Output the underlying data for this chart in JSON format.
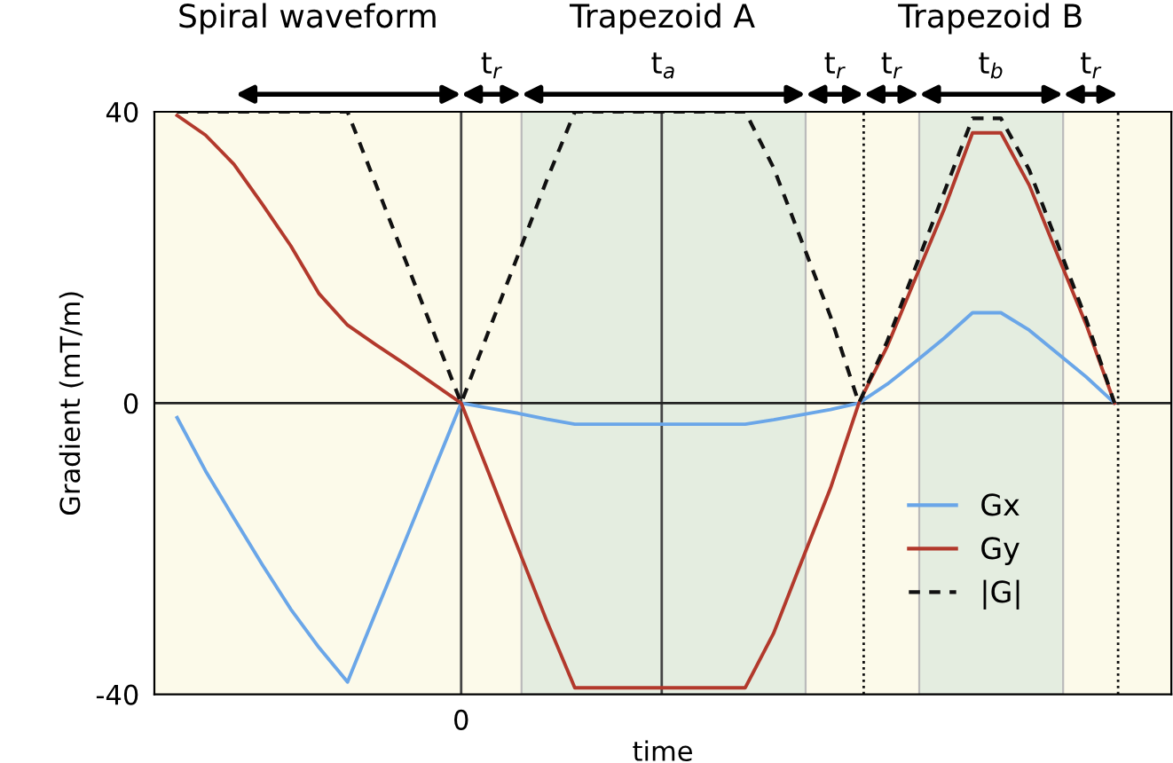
{
  "chart_data": {
    "type": "line",
    "xlabel": "time",
    "ylabel": "Gradient (mT/m)",
    "categories": [
      null,
      null,
      null,
      null,
      null,
      null,
      null,
      null,
      null,
      null,
      "0",
      null,
      null,
      null,
      null,
      null,
      null,
      null,
      null,
      null,
      null,
      null,
      null,
      null,
      null,
      null,
      null,
      null,
      null,
      null,
      null,
      null,
      null,
      null,
      null,
      null
    ],
    "ylim": [
      -40,
      40
    ],
    "yticks": [
      -40,
      0,
      40
    ],
    "grid": false,
    "legend": "lower right",
    "series": [
      {
        "name": "Gx",
        "color": "#6aa6e8",
        "line_style": "solid",
        "values": [
          -2.0,
          -9.3,
          -15.8,
          -22.2,
          -28.3,
          -33.6,
          -38.3,
          -28.7,
          -19.2,
          -9.6,
          0,
          -0.7,
          -1.4,
          -2.2,
          -2.9,
          -2.9,
          -2.9,
          -2.9,
          -2.9,
          -2.9,
          -2.9,
          -2.3,
          -1.6,
          -0.9,
          0,
          2.6,
          5.7,
          8.9,
          12.4,
          12.4,
          10.0,
          6.8,
          3.6,
          0,
          null,
          null
        ]
      },
      {
        "name": "Gy",
        "color": "#b2392c",
        "line_style": "solid",
        "values": [
          39.5,
          36.8,
          32.8,
          27.3,
          21.6,
          15.0,
          10.7,
          8.0,
          5.4,
          2.7,
          0,
          -9.9,
          -19.9,
          -29.8,
          -39.1,
          -39.1,
          -39.1,
          -39.1,
          -39.1,
          -39.1,
          -39.1,
          -31.6,
          -21.6,
          -11.7,
          0,
          7.8,
          17.2,
          26.6,
          37.1,
          37.1,
          29.9,
          20.3,
          10.8,
          0,
          null,
          null
        ]
      },
      {
        "name": "|G|",
        "color": "#111111",
        "line_style": "dashed",
        "values": [
          40,
          40,
          40,
          40,
          40,
          40,
          40,
          30,
          20,
          10,
          0,
          10.2,
          20.3,
          30.5,
          40,
          40,
          40,
          40,
          40,
          40,
          40,
          32.3,
          22.1,
          11.9,
          0,
          8.5,
          18.7,
          28.9,
          39.1,
          39.1,
          32.0,
          21.8,
          11.5,
          0,
          null,
          null
        ]
      }
    ],
    "ref_lines": [
      {
        "axis": "y",
        "value": 0,
        "color": "#222222",
        "line_style": "solid"
      }
    ],
    "annotations": [
      "Spiral waveform",
      "Trapezoid A",
      "Trapezoid B",
      "t$_{r}$",
      "t$_{a}$",
      "t$_{r}$",
      "t$_{r}$",
      "t$_{b}$",
      "t$_{r}$"
    ]
  }
}
